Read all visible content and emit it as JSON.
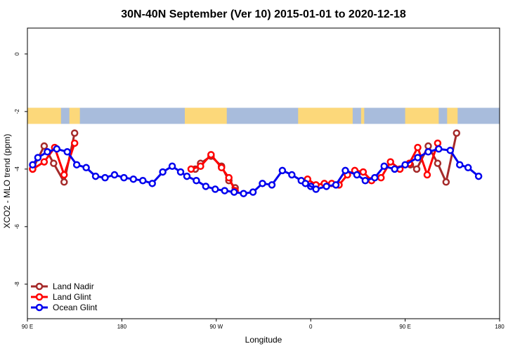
{
  "chart_data": {
    "type": "line",
    "title": "30N-40N September (Ver 10)   2015-01-01 to 2020-12-18",
    "xlabel": "Longitude",
    "ylabel": "XCO2 - MLO trend (ppm)",
    "xlim": [
      90,
      540
    ],
    "ylim": [
      -9.2,
      0.9
    ],
    "x_ticks": [
      {
        "value": 90,
        "label": "90 E"
      },
      {
        "value": 180,
        "label": "180"
      },
      {
        "value": 270,
        "label": "90 W"
      },
      {
        "value": 360,
        "label": "0"
      },
      {
        "value": 450,
        "label": "90 E"
      },
      {
        "value": 540,
        "label": "180"
      }
    ],
    "y_ticks": [
      {
        "value": 0,
        "label": "0"
      },
      {
        "value": -2,
        "label": "-2"
      },
      {
        "value": -4,
        "label": "-4"
      },
      {
        "value": -6,
        "label": "-6"
      },
      {
        "value": -8,
        "label": "-8"
      }
    ],
    "grid": false,
    "legend_position": "bottom-left",
    "map_strip": {
      "y_top": -1.87,
      "y_bottom": -2.43,
      "ocean_color": "#a8bcdc",
      "land_color": "#fcd87a"
    },
    "series": [
      {
        "name": "Land Nadir",
        "color": "#a52a2a",
        "segments": [
          [
            [
              95,
              -4.0
            ],
            [
              106,
              -3.2
            ],
            [
              115,
              -3.8
            ],
            [
              125,
              -4.45
            ],
            [
              135,
              -2.75
            ]
          ],
          [
            [
              250,
              -4.0
            ],
            [
              255,
              -3.8
            ],
            [
              265,
              -3.55
            ],
            [
              275,
              -3.9
            ],
            [
              282,
              -4.4
            ],
            [
              288,
              -4.65
            ]
          ],
          [
            [
              455,
              -3.85
            ],
            [
              461,
              -4.0
            ],
            [
              472,
              -3.2
            ],
            [
              481,
              -3.8
            ],
            [
              489,
              -4.45
            ],
            [
              499,
              -2.75
            ]
          ]
        ]
      },
      {
        "name": "Land Glint",
        "color": "#ff0000",
        "segments": [
          [
            [
              95,
              -4.0
            ],
            [
              106,
              -3.75
            ],
            [
              116,
              -3.25
            ],
            [
              125,
              -4.2
            ],
            [
              135,
              -3.1
            ]
          ],
          [
            [
              246,
              -4.0
            ],
            [
              255,
              -3.9
            ],
            [
              265,
              -3.5
            ],
            [
              275,
              -3.95
            ],
            [
              282,
              -4.3
            ],
            [
              288,
              -4.75
            ]
          ],
          [
            [
              357,
              -4.35
            ],
            [
              365,
              -4.55
            ],
            [
              373,
              -4.5
            ],
            [
              380,
              -4.5
            ],
            [
              387,
              -4.55
            ],
            [
              395,
              -4.2
            ],
            [
              402,
              -4.05
            ],
            [
              410,
              -4.1
            ],
            [
              418,
              -4.4
            ],
            [
              427,
              -4.3
            ],
            [
              436,
              -3.75
            ],
            [
              445,
              -4.0
            ],
            [
              454,
              -3.8
            ],
            [
              462,
              -3.25
            ],
            [
              471,
              -4.2
            ],
            [
              481,
              -3.1
            ]
          ]
        ]
      },
      {
        "name": "Ocean Glint",
        "color": "#0000ee",
        "segments": [
          [
            [
              95,
              -3.85
            ],
            [
              100,
              -3.6
            ],
            [
              109,
              -3.4
            ],
            [
              118,
              -3.3
            ],
            [
              128,
              -3.4
            ],
            [
              137,
              -3.85
            ],
            [
              146,
              -3.95
            ],
            [
              155,
              -4.25
            ],
            [
              164,
              -4.3
            ],
            [
              173,
              -4.2
            ],
            [
              182,
              -4.3
            ],
            [
              191,
              -4.35
            ],
            [
              200,
              -4.4
            ],
            [
              209,
              -4.5
            ],
            [
              219,
              -4.1
            ],
            [
              228,
              -3.9
            ],
            [
              236,
              -4.1
            ],
            [
              242,
              -4.25
            ],
            [
              251,
              -4.4
            ],
            [
              260,
              -4.6
            ],
            [
              269,
              -4.7
            ],
            [
              278,
              -4.75
            ],
            [
              287,
              -4.8
            ],
            [
              296,
              -4.85
            ],
            [
              305,
              -4.8
            ],
            [
              314,
              -4.5
            ],
            [
              323,
              -4.55
            ],
            [
              333,
              -4.05
            ],
            [
              342,
              -4.2
            ],
            [
              351,
              -4.4
            ],
            [
              360,
              -4.6
            ]
          ],
          [
            [
              355,
              -4.5
            ],
            [
              365,
              -4.7
            ],
            [
              375,
              -4.6
            ],
            [
              384,
              -4.55
            ],
            [
              393,
              -4.05
            ],
            [
              404,
              -4.2
            ],
            [
              412,
              -4.4
            ],
            [
              421,
              -4.3
            ],
            [
              430,
              -3.9
            ],
            [
              440,
              -4.0
            ],
            [
              450,
              -3.85
            ],
            [
              462,
              -3.6
            ],
            [
              472,
              -3.4
            ],
            [
              482,
              -3.3
            ],
            [
              493,
              -3.35
            ],
            [
              502,
              -3.85
            ],
            [
              510,
              -3.95
            ],
            [
              520,
              -4.25
            ]
          ]
        ]
      }
    ]
  }
}
